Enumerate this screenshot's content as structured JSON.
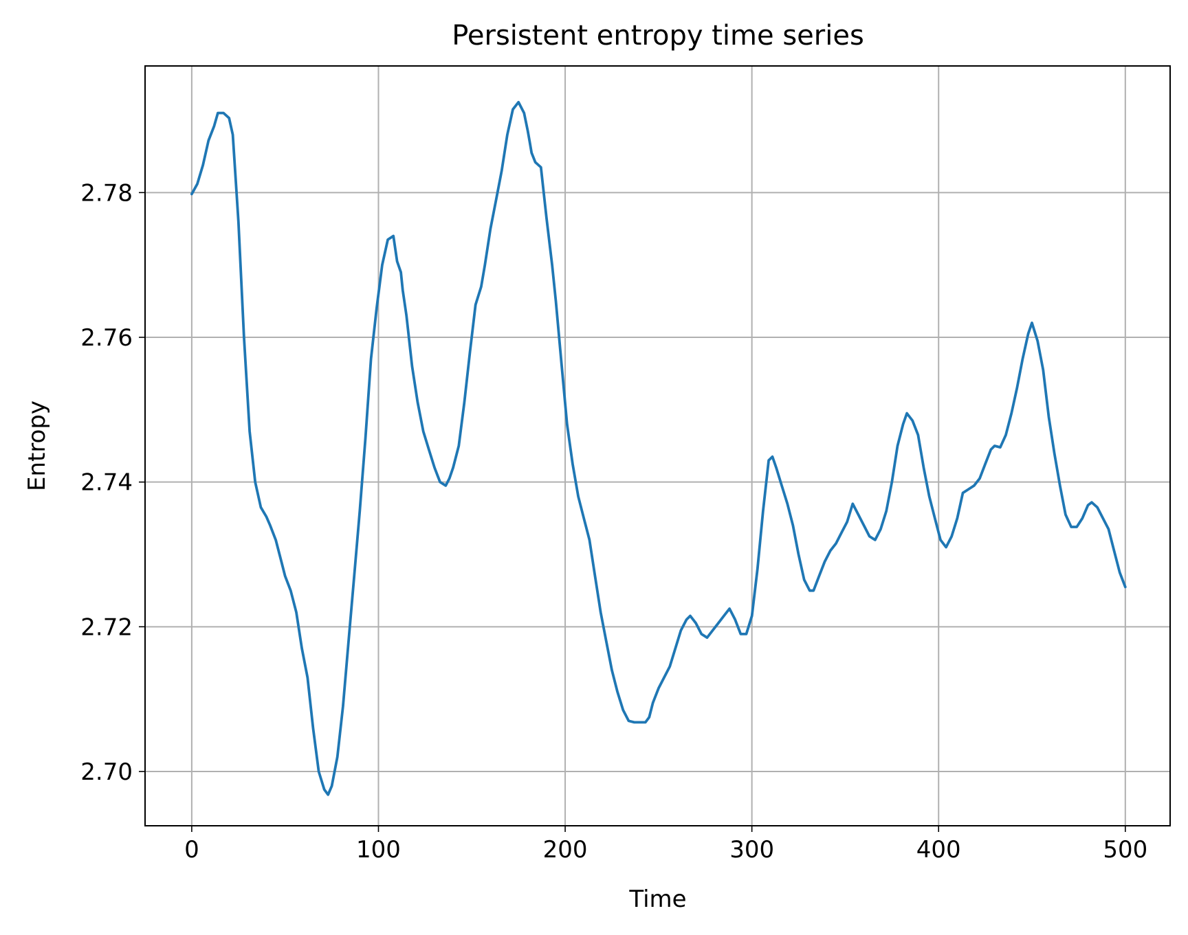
{
  "chart_data": {
    "type": "line",
    "title": "Persistent entropy time series",
    "xlabel": "Time",
    "ylabel": "Entropy",
    "xlim": [
      -25,
      524
    ],
    "ylim": [
      2.6925,
      2.7975
    ],
    "xticks": [
      0,
      100,
      200,
      300,
      400,
      500
    ],
    "xtick_labels": [
      "0",
      "100",
      "200",
      "300",
      "400",
      "500"
    ],
    "yticks": [
      2.7,
      2.72,
      2.74,
      2.76,
      2.78
    ],
    "ytick_labels": [
      "2.70",
      "2.72",
      "2.74",
      "2.76",
      "2.78"
    ],
    "grid": true,
    "line_color": "#1f77b4",
    "series": [
      {
        "x": [
          0,
          3,
          6,
          9,
          12,
          14,
          17,
          20,
          22,
          25,
          28,
          31,
          34,
          37,
          40,
          42,
          45,
          48,
          50,
          53,
          56,
          59,
          62,
          65,
          68,
          71,
          73,
          75,
          78,
          81,
          84,
          87,
          90,
          93,
          96,
          99,
          102,
          105,
          108,
          110,
          112,
          113,
          115,
          118,
          121,
          124,
          127,
          130,
          133,
          136,
          138,
          140,
          143,
          146,
          149,
          152,
          155,
          157,
          160,
          163,
          166,
          169,
          172,
          175,
          178,
          180,
          181,
          182,
          184,
          187,
          190,
          193,
          195,
          198,
          201,
          204,
          207,
          210,
          213,
          216,
          219,
          222,
          225,
          228,
          231,
          234,
          237,
          240,
          243,
          245,
          247,
          250,
          253,
          256,
          259,
          262,
          265,
          267,
          270,
          273,
          276,
          279,
          282,
          285,
          288,
          291,
          294,
          297,
          300,
          303,
          306,
          309,
          311,
          313,
          316,
          319,
          322,
          325,
          328,
          331,
          333,
          336,
          339,
          342,
          345,
          348,
          351,
          354,
          357,
          360,
          363,
          366,
          369,
          372,
          375,
          378,
          381,
          383,
          386,
          389,
          392,
          395,
          398,
          401,
          404,
          407,
          410,
          413,
          416,
          419,
          422,
          425,
          428,
          430,
          433,
          436,
          439,
          442,
          445,
          448,
          450,
          453,
          456,
          459,
          462,
          465,
          468,
          471,
          474,
          477,
          480,
          482,
          485,
          488,
          491,
          494,
          497,
          500
        ],
        "values": [
          2.7798,
          2.7812,
          2.7838,
          2.7872,
          2.7892,
          2.791,
          2.791,
          2.7903,
          2.788,
          2.776,
          2.76,
          2.747,
          2.74,
          2.7365,
          2.7352,
          2.734,
          2.732,
          2.729,
          2.727,
          2.725,
          2.722,
          2.717,
          2.713,
          2.706,
          2.7,
          2.6975,
          2.6968,
          2.698,
          2.702,
          2.709,
          2.718,
          2.727,
          2.736,
          2.746,
          2.757,
          2.764,
          2.77,
          2.7735,
          2.774,
          2.7705,
          2.769,
          2.7665,
          2.763,
          2.756,
          2.751,
          2.747,
          2.7445,
          2.742,
          2.74,
          2.7395,
          2.7405,
          2.742,
          2.745,
          2.751,
          2.758,
          2.7645,
          2.767,
          2.77,
          2.775,
          2.779,
          2.783,
          2.788,
          2.7915,
          2.7925,
          2.791,
          2.7885,
          2.787,
          2.7855,
          2.7842,
          2.7835,
          2.7765,
          2.77,
          2.765,
          2.7565,
          2.748,
          2.7425,
          2.738,
          2.735,
          2.732,
          2.727,
          2.722,
          2.718,
          2.714,
          2.711,
          2.7085,
          2.707,
          2.7068,
          2.7068,
          2.7068,
          2.7075,
          2.7095,
          2.7115,
          2.713,
          2.7145,
          2.717,
          2.7195,
          2.721,
          2.7215,
          2.7205,
          2.719,
          2.7185,
          2.7195,
          2.7205,
          2.7215,
          2.7225,
          2.721,
          2.719,
          2.719,
          2.7215,
          2.728,
          2.736,
          2.743,
          2.7435,
          2.742,
          2.7395,
          2.737,
          2.734,
          2.73,
          2.7265,
          2.725,
          2.725,
          2.727,
          2.729,
          2.7305,
          2.7315,
          2.733,
          2.7345,
          2.737,
          2.7355,
          2.734,
          2.7325,
          2.732,
          2.7335,
          2.736,
          2.74,
          2.745,
          2.748,
          2.7495,
          2.7485,
          2.7465,
          2.742,
          2.738,
          2.735,
          2.732,
          2.731,
          2.7325,
          2.735,
          2.7385,
          2.739,
          2.7395,
          2.7405,
          2.7425,
          2.7445,
          2.745,
          2.7448,
          2.7465,
          2.7495,
          2.753,
          2.757,
          2.7605,
          2.762,
          2.7595,
          2.7555,
          2.749,
          2.744,
          2.7395,
          2.7355,
          2.7338,
          2.7338,
          2.735,
          2.7368,
          2.7372,
          2.7365,
          2.735,
          2.7335,
          2.7305,
          2.7275,
          2.7255
        ]
      }
    ]
  }
}
